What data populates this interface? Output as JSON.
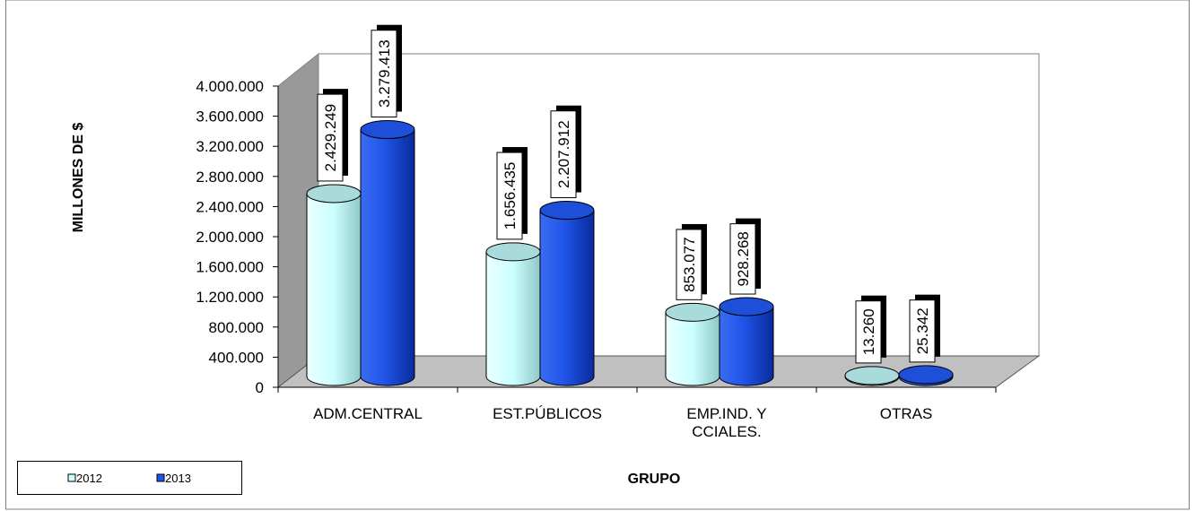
{
  "chart_data": {
    "type": "bar",
    "title": "",
    "ylabel": "MILLONES DE $",
    "xlabel": "GRUPO",
    "ylim": [
      0,
      4000000
    ],
    "yticks": [
      "0",
      "400.000",
      "800.000",
      "1.200.000",
      "1.600.000",
      "2.000.000",
      "2.400.000",
      "2.800.000",
      "3.200.000",
      "3.600.000",
      "4.000.000"
    ],
    "categories": [
      [
        "ADM.CENTRAL"
      ],
      [
        "EST.PÚBLICOS"
      ],
      [
        "EMP.IND. Y",
        "CCIALES."
      ],
      [
        "OTRAS"
      ]
    ],
    "series": [
      {
        "name": "2012",
        "values": [
          2429249,
          1656435,
          853077,
          13260
        ],
        "labels": [
          "2.429.249",
          "1.656.435",
          "853.077",
          "13.260"
        ],
        "color": "#ccffff"
      },
      {
        "name": "2013",
        "values": [
          3279413,
          2207912,
          928268,
          25342
        ],
        "labels": [
          "3.279.413",
          "2.207.912",
          "928.268",
          "25.342"
        ],
        "color": "#1f54e8"
      }
    ],
    "grid": false,
    "legend": "bottom-left"
  }
}
